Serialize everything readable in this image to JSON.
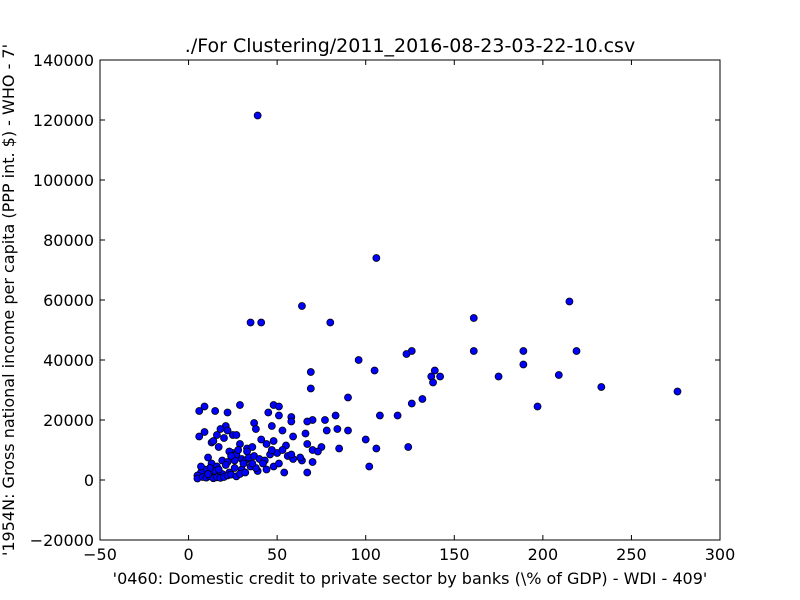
{
  "chart_data": {
    "type": "scatter",
    "title": "./For Clustering/2011_2016-08-23-03-22-10.csv",
    "xlabel": "'0460: Domestic credit to private sector by banks  (\\% of GDP) - WDI - 409'",
    "ylabel": "'1954N: Gross national income per capita (PPP int. $) - WHO - 7'",
    "xlim": [
      -50,
      300
    ],
    "ylim": [
      -20000,
      140000
    ],
    "x_ticks": [
      -50,
      0,
      50,
      100,
      150,
      200,
      250,
      300
    ],
    "y_ticks": [
      -20000,
      0,
      20000,
      40000,
      60000,
      80000,
      100000,
      120000,
      140000
    ],
    "x_tick_labels": [
      "−50",
      "0",
      "50",
      "100",
      "150",
      "200",
      "250",
      "300"
    ],
    "y_tick_labels": [
      "−20000",
      "0",
      "20000",
      "40000",
      "60000",
      "80000",
      "100000",
      "120000",
      "140000"
    ],
    "grid": false,
    "legend": "none",
    "marker_color": "#0000ff",
    "marker_edge_color": "#000000",
    "points": [
      [
        39,
        121500
      ],
      [
        106,
        74000
      ],
      [
        215,
        59500
      ],
      [
        64,
        58000
      ],
      [
        35,
        52500
      ],
      [
        41,
        52500
      ],
      [
        80,
        52500
      ],
      [
        161,
        54000
      ],
      [
        161,
        43000
      ],
      [
        189,
        43000
      ],
      [
        219,
        43000
      ],
      [
        126,
        43000
      ],
      [
        123,
        42000
      ],
      [
        96,
        40000
      ],
      [
        189,
        38500
      ],
      [
        105,
        36500
      ],
      [
        69,
        36000
      ],
      [
        139,
        36500
      ],
      [
        137,
        34500
      ],
      [
        142,
        34500
      ],
      [
        175,
        34500
      ],
      [
        209,
        35000
      ],
      [
        138,
        32500
      ],
      [
        233,
        31000
      ],
      [
        276,
        29500
      ],
      [
        69,
        30500
      ],
      [
        90,
        27500
      ],
      [
        132,
        27000
      ],
      [
        126,
        25500
      ],
      [
        197,
        24500
      ],
      [
        29,
        25000
      ],
      [
        9,
        24500
      ],
      [
        6,
        23000
      ],
      [
        15,
        23000
      ],
      [
        22,
        22500
      ],
      [
        48,
        25000
      ],
      [
        51,
        24500
      ],
      [
        45,
        22500
      ],
      [
        51,
        21500
      ],
      [
        58,
        21000
      ],
      [
        83,
        21500
      ],
      [
        108,
        21500
      ],
      [
        118,
        21500
      ],
      [
        70,
        20000
      ],
      [
        77,
        20000
      ],
      [
        67,
        19500
      ],
      [
        58,
        19500
      ],
      [
        37,
        19000
      ],
      [
        21,
        18000
      ],
      [
        18,
        17000
      ],
      [
        25,
        15000
      ],
      [
        16,
        15000
      ],
      [
        38,
        17000
      ],
      [
        47,
        18000
      ],
      [
        53,
        16500
      ],
      [
        59,
        14500
      ],
      [
        66,
        15500
      ],
      [
        78,
        16500
      ],
      [
        84,
        17000
      ],
      [
        90,
        16500
      ],
      [
        100,
        13500
      ],
      [
        6,
        14500
      ],
      [
        9,
        16000
      ],
      [
        13,
        12500
      ],
      [
        20,
        14000
      ],
      [
        22,
        16500
      ],
      [
        27,
        15000
      ],
      [
        29,
        12000
      ],
      [
        33,
        10500
      ],
      [
        36,
        11000
      ],
      [
        44,
        12000
      ],
      [
        48,
        13000
      ],
      [
        55,
        11500
      ],
      [
        67,
        12000
      ],
      [
        70,
        10000
      ],
      [
        75,
        11000
      ],
      [
        85,
        10500
      ],
      [
        106,
        10500
      ],
      [
        124,
        11000
      ],
      [
        11,
        7500
      ],
      [
        13,
        5500
      ],
      [
        16,
        4500
      ],
      [
        19,
        6500
      ],
      [
        22,
        6000
      ],
      [
        25,
        9000
      ],
      [
        27,
        8500
      ],
      [
        30,
        7000
      ],
      [
        32,
        6500
      ],
      [
        34,
        7500
      ],
      [
        37,
        8000
      ],
      [
        40,
        7000
      ],
      [
        43,
        6500
      ],
      [
        46,
        8500
      ],
      [
        50,
        9000
      ],
      [
        53,
        10000
      ],
      [
        56,
        8000
      ],
      [
        59,
        7000
      ],
      [
        64,
        6500
      ],
      [
        70,
        6000
      ],
      [
        102,
        4500
      ],
      [
        48,
        4500
      ],
      [
        51,
        5500
      ],
      [
        44,
        3500
      ],
      [
        54,
        2500
      ],
      [
        67,
        2500
      ],
      [
        39,
        3000
      ],
      [
        35,
        4500
      ],
      [
        30,
        3500
      ],
      [
        26,
        4000
      ],
      [
        23,
        2500
      ],
      [
        19,
        2000
      ],
      [
        15,
        3000
      ],
      [
        12,
        4000
      ],
      [
        9,
        3500
      ],
      [
        7,
        2500
      ],
      [
        5,
        1500
      ],
      [
        5,
        500
      ],
      [
        8,
        1000
      ],
      [
        10,
        800
      ],
      [
        12,
        1200
      ],
      [
        14,
        600
      ],
      [
        16,
        900
      ],
      [
        18,
        700
      ],
      [
        20,
        1000
      ],
      [
        22,
        1500
      ],
      [
        24,
        1800
      ],
      [
        27,
        1200
      ],
      [
        29,
        2000
      ],
      [
        32,
        2500
      ],
      [
        42,
        5500
      ],
      [
        38,
        4000
      ],
      [
        36,
        5500
      ],
      [
        33,
        9500
      ],
      [
        28,
        10000
      ],
      [
        23,
        9500
      ],
      [
        17,
        11000
      ],
      [
        14,
        13000
      ],
      [
        41,
        13500
      ],
      [
        47,
        10000
      ],
      [
        58,
        8500
      ],
      [
        73,
        9500
      ],
      [
        63,
        7500
      ],
      [
        26,
        6500
      ],
      [
        21,
        5000
      ],
      [
        11,
        2000
      ],
      [
        7,
        4500
      ],
      [
        17,
        3500
      ],
      [
        24,
        8000
      ],
      [
        31,
        5500
      ]
    ]
  }
}
